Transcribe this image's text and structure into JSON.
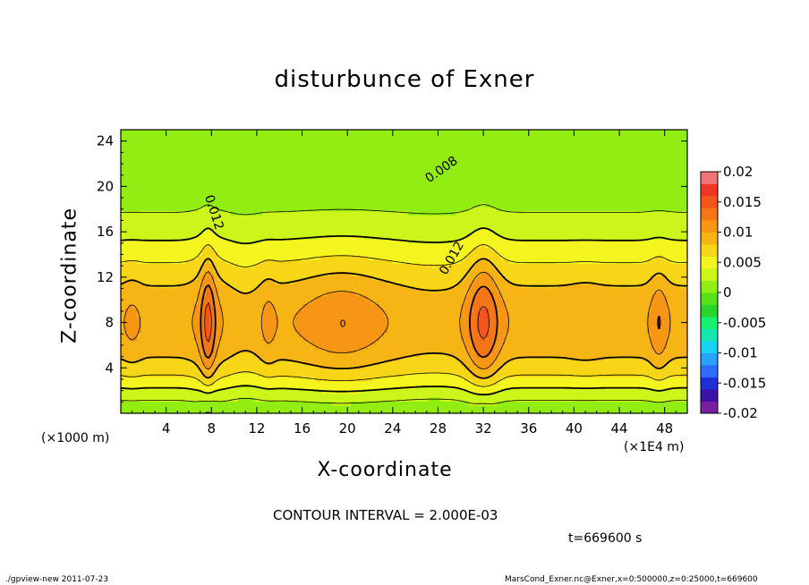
{
  "chart_data": {
    "type": "contour",
    "title": "disturbunce of Exner",
    "xlabel": "X-coordinate",
    "ylabel": "Z-coordinate",
    "x_unit_left": "(×1000 m)",
    "x_unit_right": "(×1E4 m)",
    "xlim": [
      0,
      50
    ],
    "ylim": [
      0,
      25
    ],
    "x_ticks": [
      4,
      8,
      12,
      16,
      20,
      24,
      28,
      32,
      36,
      40,
      44,
      48
    ],
    "y_ticks": [
      4,
      8,
      12,
      16,
      20,
      24
    ],
    "colorbar": {
      "ticks": [
        "0.02",
        "0.015",
        "0.01",
        "0.005",
        "0",
        "-0.005",
        "-0.01",
        "-0.015",
        "-0.02"
      ],
      "range": [
        -0.02,
        0.02
      ],
      "colors": [
        "#7a1fa0",
        "#3a12a8",
        "#1f2fd6",
        "#2f6cff",
        "#2aa0ff",
        "#16d4f0",
        "#13e8b0",
        "#18f070",
        "#2ad42a",
        "#58e21c",
        "#92ee12",
        "#ccf51a",
        "#f4f51e",
        "#f6d616",
        "#f6b514",
        "#f69614",
        "#f57617",
        "#f3561b",
        "#ee3622",
        "#f07474"
      ]
    },
    "contour_labels": [
      "0.008",
      "0.012",
      "0.012"
    ],
    "contour_interval": "CONTOUR INTERVAL = 2.000E-03",
    "time_label": "t=669600 s",
    "zero_label": "0"
  },
  "footer": {
    "left": "./gpview-new   2011-07-23",
    "right": "MarsCond_Exner.nc@Exner,x=0:500000,z=0:25000,t=669600"
  }
}
